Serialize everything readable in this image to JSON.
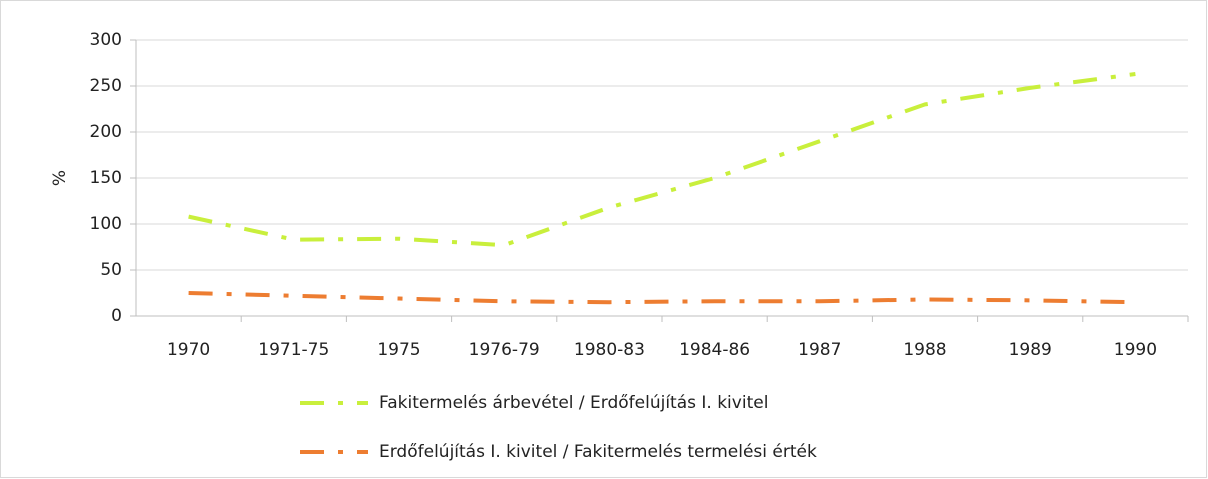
{
  "chart_data": {
    "type": "line",
    "y_label": "%",
    "categories": [
      "1970",
      "1971-75",
      "1975",
      "1976-79",
      "1980-83",
      "1984-86",
      "1987",
      "1988",
      "1989",
      "1990"
    ],
    "series": [
      {
        "name": "Fakitermelés árbevétel / Erdőfelújítás I. kivitel",
        "color": "#c9ef3c",
        "dash": "dash-dot",
        "values": [
          108,
          83,
          84,
          77,
          118,
          150,
          190,
          230,
          248,
          263
        ]
      },
      {
        "name": "Erdőfelújítás I. kivitel / Fakitermelés termelési érték",
        "color": "#ed7d31",
        "dash": "dash-dot",
        "values": [
          25,
          22,
          19,
          16,
          15,
          16,
          16,
          18,
          17,
          15
        ]
      }
    ],
    "ylim": [
      0,
      300
    ],
    "yticks": [
      0,
      50,
      100,
      150,
      200,
      250,
      300
    ],
    "grid": true,
    "legend": "bottom"
  }
}
